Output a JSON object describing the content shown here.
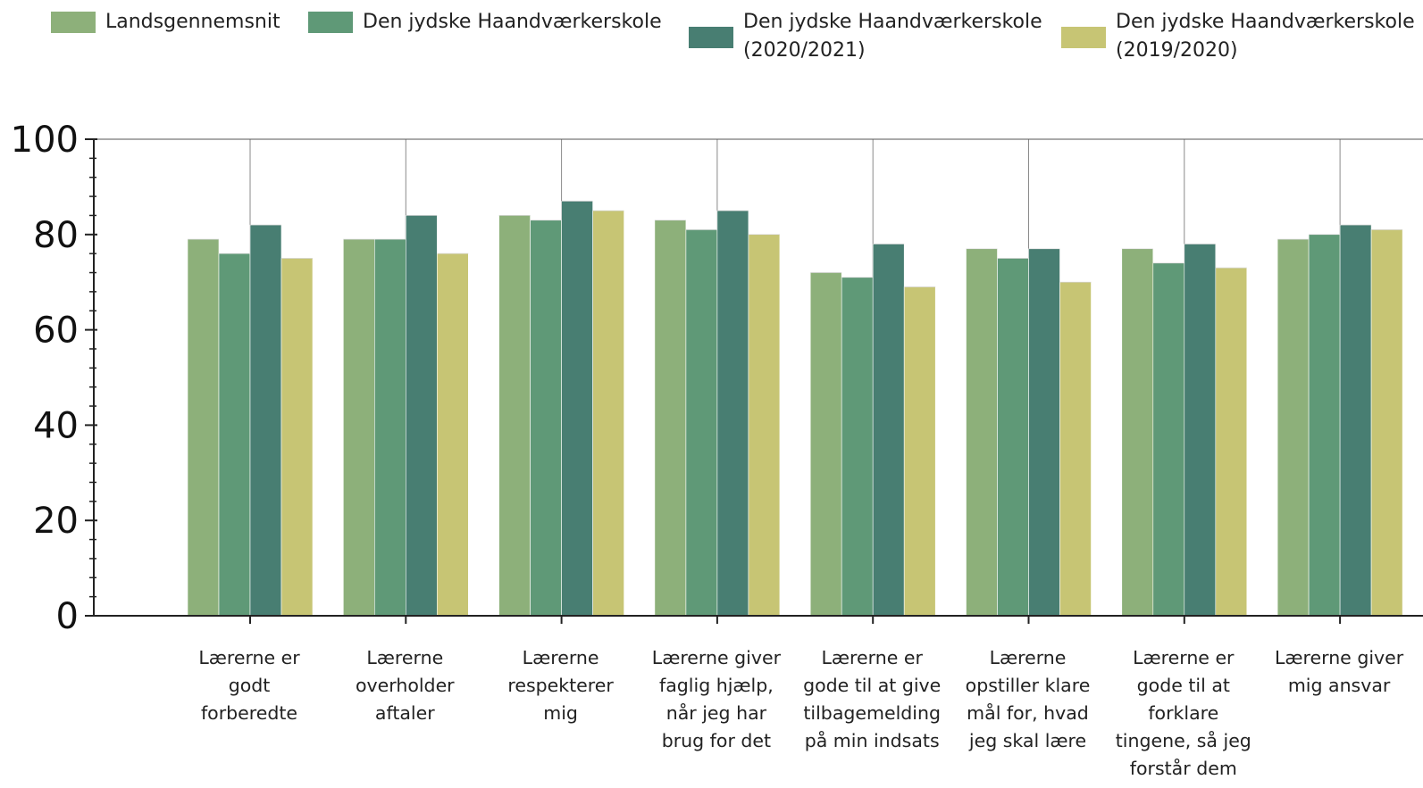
{
  "chart_data": {
    "type": "bar",
    "title": "",
    "xlabel": "",
    "ylabel": "",
    "ylim": [
      0,
      100
    ],
    "yticks": [
      0,
      20,
      40,
      60,
      80,
      100
    ],
    "grid": "vertical lines at category centers",
    "legend_position": "top",
    "categories": [
      [
        "Lærerne er",
        "godt",
        "forberedte"
      ],
      [
        "Lærerne",
        "overholder",
        "aftaler"
      ],
      [
        "Lærerne",
        "respekterer",
        "mig"
      ],
      [
        "Lærerne giver",
        "faglig hjælp,",
        "når jeg har",
        "brug for det"
      ],
      [
        "Lærerne er",
        "gode til at give",
        "tilbagemelding",
        "på min indsats"
      ],
      [
        "Lærerne",
        "opstiller klare",
        "mål for, hvad",
        "jeg skal lære"
      ],
      [
        "Lærerne er",
        "gode til at",
        "forklare",
        "tingene, så jeg",
        "forstår dem"
      ],
      [
        "Lærerne giver",
        "mig ansvar"
      ]
    ],
    "series": [
      {
        "name": [
          "Landsgennemsnit"
        ],
        "color": "#8db07a",
        "values": [
          79,
          79,
          84,
          83,
          72,
          77,
          77,
          79
        ]
      },
      {
        "name": [
          "Den jydske Haandværkerskole"
        ],
        "color": "#5f9977",
        "values": [
          76,
          79,
          83,
          81,
          71,
          75,
          74,
          80
        ]
      },
      {
        "name": [
          "Den jydske Haandværkerskole",
          "(2020/2021)"
        ],
        "color": "#487e72",
        "values": [
          82,
          84,
          87,
          85,
          78,
          77,
          78,
          82
        ]
      },
      {
        "name": [
          "Den jydske Haandværkerskole",
          "(2019/2020)"
        ],
        "color": "#c7c574",
        "values": [
          75,
          76,
          85,
          80,
          69,
          70,
          73,
          81
        ]
      }
    ]
  }
}
